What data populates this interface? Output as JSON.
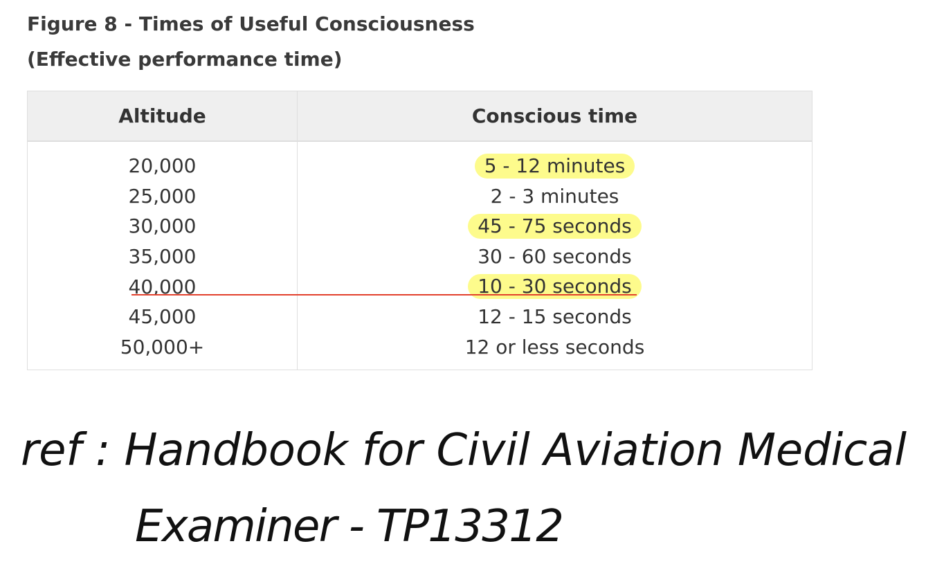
{
  "figure": {
    "title": "Figure 8 - Times of Useful Consciousness",
    "subtitle": "(Effective performance time)"
  },
  "table": {
    "header": [
      "Altitude",
      "Conscious time"
    ],
    "rows": [
      [
        "20,000",
        "5 - 12 minutes"
      ],
      [
        "25,000",
        "2 - 3 minutes"
      ],
      [
        "30,000",
        "45 - 75 seconds"
      ],
      [
        "35,000",
        "30 - 60 seconds"
      ],
      [
        "40,000",
        "10 - 30 seconds"
      ],
      [
        "45,000",
        "12 - 15 seconds"
      ],
      [
        "50,000+",
        "12 or less seconds"
      ]
    ]
  },
  "note": {
    "lines": [
      "ref : Handbook for Civil Aviation Medical",
      "Examiner - TP13312"
    ]
  }
}
